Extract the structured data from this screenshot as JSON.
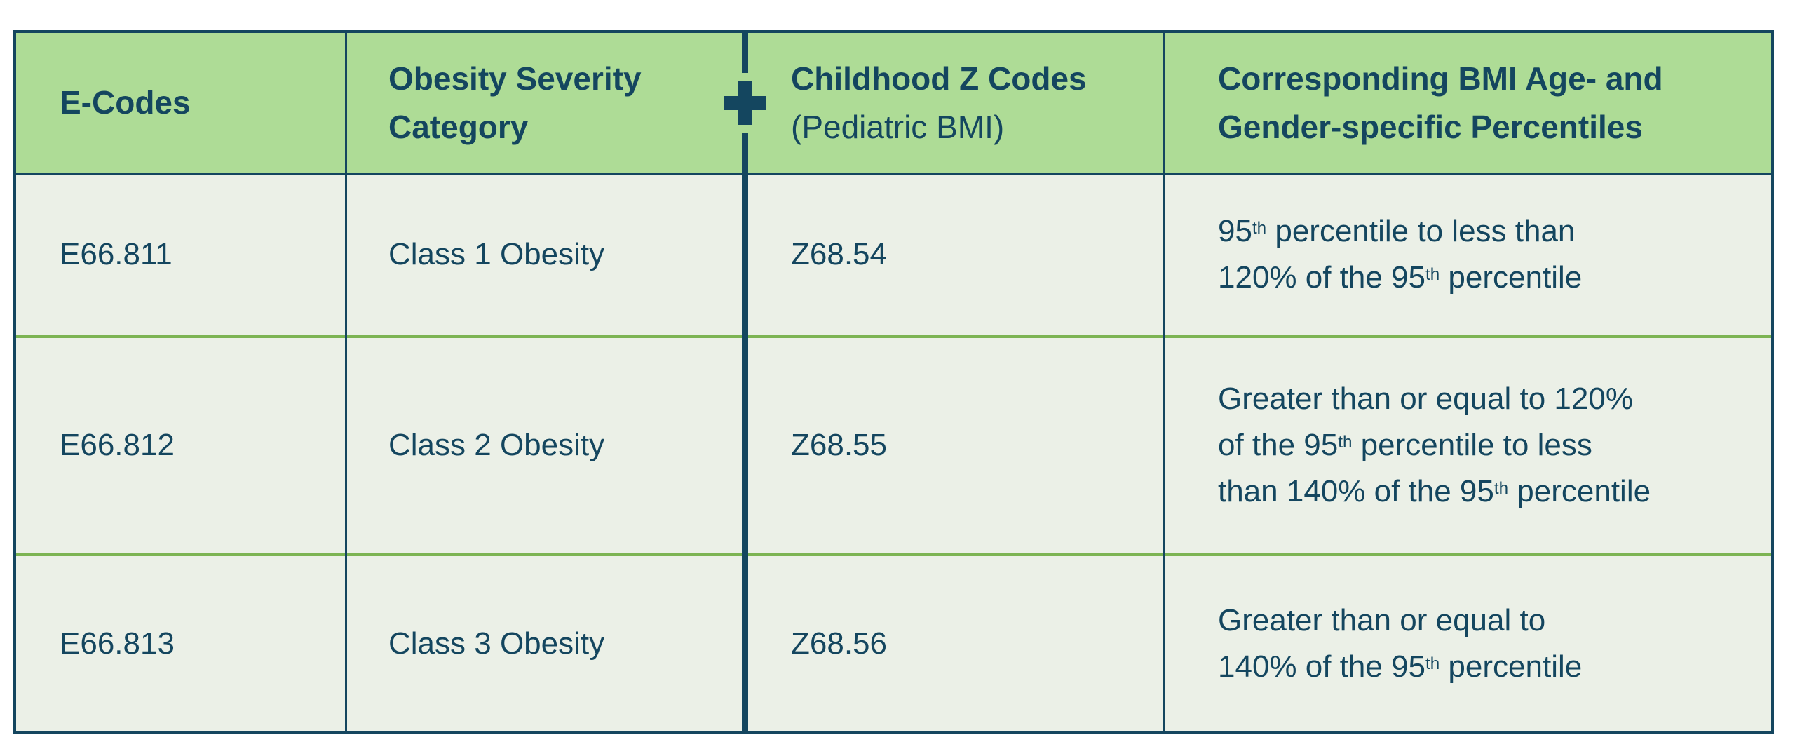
{
  "colors": {
    "navy": "#14465F",
    "header_bg": "#AEDC96",
    "body_bg": "#EBF0E7",
    "row_divider_green": "#7CB453",
    "page_bg": "#FFFFFF"
  },
  "table": {
    "columns": [
      {
        "header": "E-Codes"
      },
      {
        "header": "Obesity Severity\nCategory"
      },
      {
        "header": "Childhood Z Codes",
        "subheader": "(Pediatric BMI)"
      },
      {
        "header": "Corresponding BMI Age- and\nGender-specific Percentiles"
      }
    ],
    "join_icon": "plus-icon",
    "rows": [
      {
        "e_code": "E66.811",
        "severity": "Class 1 Obesity",
        "z_code": "Z68.54",
        "percentile": "95^th^ percentile to less than\n120% of the 95^th^ percentile"
      },
      {
        "e_code": "E66.812",
        "severity": "Class 2 Obesity",
        "z_code": "Z68.55",
        "percentile": "Greater than or equal to 120%\nof the 95^th^ percentile to less\nthan 140% of the 95^th^ percentile"
      },
      {
        "e_code": "E66.813",
        "severity": "Class 3 Obesity",
        "z_code": "Z68.56",
        "percentile": "Greater than or equal to\n140% of the 95^th^ percentile"
      }
    ]
  }
}
